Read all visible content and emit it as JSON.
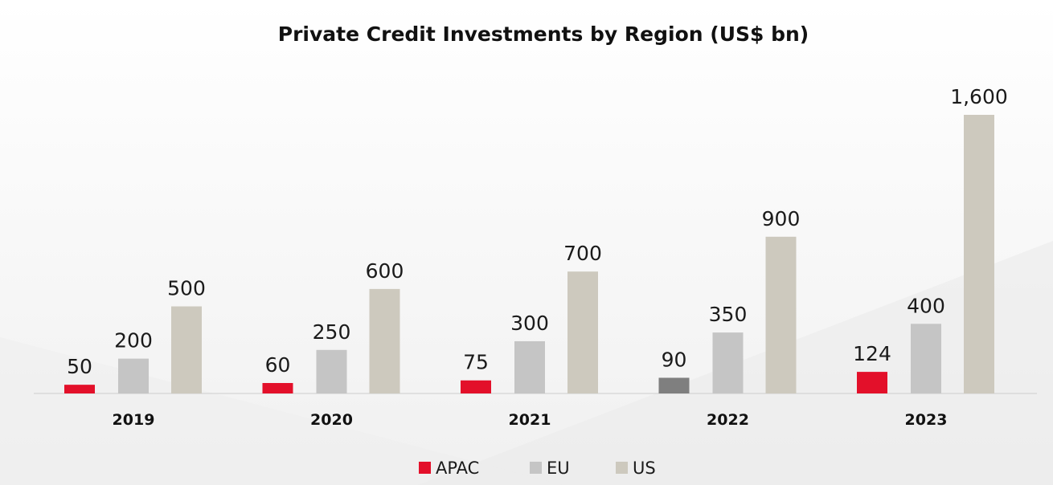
{
  "chart_data": {
    "type": "bar",
    "title": "Private Credit Investments by Region (US$ bn)",
    "xlabel": "",
    "ylabel": "",
    "categories": [
      "2019",
      "2020",
      "2021",
      "2022",
      "2023"
    ],
    "series": [
      {
        "name": "APAC",
        "color": "#e3102a",
        "values": [
          50,
          60,
          75,
          90,
          124
        ],
        "value_labels": [
          "50",
          "60",
          "75",
          "90",
          "124"
        ]
      },
      {
        "name": "EU",
        "color": "#c5c5c5",
        "values": [
          200,
          250,
          300,
          350,
          400
        ],
        "value_labels": [
          "200",
          "250",
          "300",
          "350",
          "400"
        ]
      },
      {
        "name": "US",
        "color": "#cdc9be",
        "values": [
          500,
          600,
          700,
          900,
          1600
        ],
        "value_labels": [
          "500",
          "600",
          "700",
          "900",
          "1,600"
        ]
      }
    ],
    "highlight": {
      "series": 0,
      "category": 3,
      "color": "#7f7f7f"
    },
    "ylim": [
      0,
      1600
    ],
    "grid": false,
    "legend_position": "bottom"
  }
}
